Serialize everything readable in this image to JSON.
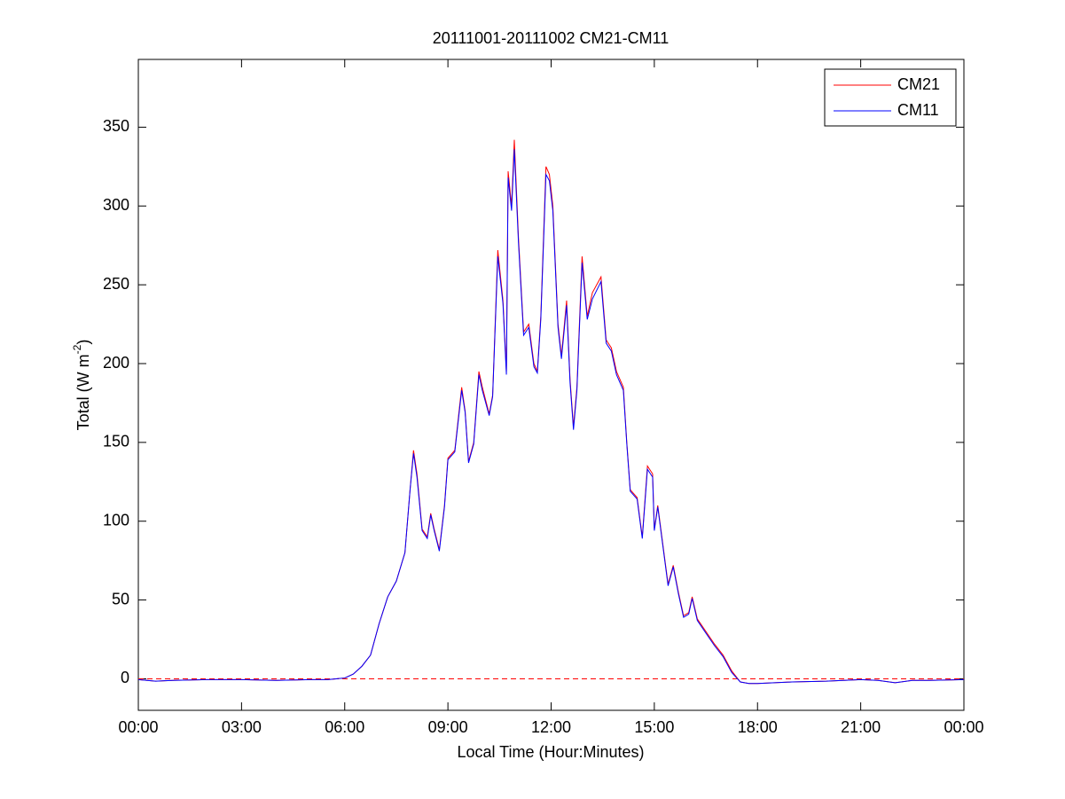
{
  "chart_data": {
    "type": "line",
    "title": "20111001-20111002 CM21-CM11",
    "xlabel": "Local Time (Hour:Minutes)",
    "ylabel": [
      "Total (W m",
      "-2",
      ")"
    ],
    "x": [
      0,
      0.5,
      1,
      2,
      3,
      4,
      5,
      5.5,
      5.75,
      6,
      6.25,
      6.5,
      6.75,
      7,
      7.25,
      7.5,
      7.75,
      7.9,
      8,
      8.1,
      8.25,
      8.4,
      8.5,
      8.6,
      8.75,
      8.9,
      9,
      9.2,
      9.4,
      9.5,
      9.6,
      9.75,
      9.9,
      10,
      10.2,
      10.3,
      10.45,
      10.6,
      10.7,
      10.75,
      10.85,
      10.93,
      11.05,
      11.2,
      11.35,
      11.5,
      11.6,
      11.7,
      11.85,
      11.95,
      12.05,
      12.2,
      12.3,
      12.45,
      12.55,
      12.65,
      12.75,
      12.9,
      13.05,
      13.2,
      13.45,
      13.6,
      13.75,
      13.9,
      14.1,
      14.2,
      14.3,
      14.5,
      14.65,
      14.8,
      14.95,
      15,
      15.1,
      15.25,
      15.4,
      15.55,
      15.7,
      15.85,
      16,
      16.1,
      16.25,
      16.5,
      16.75,
      17,
      17.25,
      17.5,
      17.75,
      18,
      19,
      20,
      21,
      21.5,
      22,
      22.5,
      23,
      24
    ],
    "series": [
      {
        "name": "CM21",
        "color": "#ff0000",
        "values": [
          -0.5,
          -1.5,
          -1,
          -0.5,
          -0.5,
          -1,
          -0.5,
          -0.5,
          0,
          0.5,
          3,
          8,
          15,
          35,
          52,
          62,
          80,
          120,
          145,
          130,
          95,
          90,
          105,
          95,
          82,
          110,
          140,
          145,
          185,
          170,
          138,
          150,
          195,
          185,
          168,
          180,
          272,
          240,
          195,
          322,
          300,
          342,
          280,
          220,
          225,
          200,
          195,
          230,
          325,
          320,
          300,
          225,
          205,
          240,
          190,
          160,
          185,
          268,
          230,
          245,
          255,
          215,
          210,
          195,
          185,
          150,
          120,
          115,
          90,
          135,
          130,
          95,
          110,
          85,
          60,
          72,
          55,
          40,
          42,
          52,
          38,
          30,
          22,
          15,
          5,
          -2,
          -3,
          -3,
          -2,
          -1.5,
          -0.5,
          -1,
          -2.5,
          -1,
          -1,
          -0.5
        ]
      },
      {
        "name": "CM11",
        "color": "#0000ff",
        "values": [
          -0.5,
          -1.5,
          -1,
          -0.5,
          -0.5,
          -1,
          -0.5,
          -0.5,
          0,
          0.5,
          3,
          8,
          15,
          35,
          52,
          62,
          80,
          120,
          143,
          128,
          94,
          89,
          104,
          94,
          81,
          109,
          139,
          144,
          183,
          169,
          137,
          149,
          193,
          183,
          167,
          179,
          268,
          238,
          193,
          318,
          297,
          336,
          277,
          218,
          223,
          198,
          194,
          228,
          320,
          316,
          297,
          223,
          203,
          237,
          188,
          158,
          183,
          264,
          228,
          241,
          252,
          213,
          208,
          193,
          183,
          149,
          119,
          114,
          89,
          133,
          128,
          94,
          109,
          84,
          59,
          71,
          54,
          39,
          41,
          51,
          37,
          29,
          21,
          14,
          4,
          -2,
          -3,
          -3,
          -2,
          -1.5,
          -0.5,
          -1,
          -2.5,
          -1,
          -1,
          -0.5
        ]
      }
    ],
    "hline": {
      "value": 0,
      "color": "#ff0000"
    },
    "xlim": [
      0,
      24
    ],
    "xticks": [
      {
        "value": 0,
        "label": "00:00"
      },
      {
        "value": 3,
        "label": "03:00"
      },
      {
        "value": 6,
        "label": "06:00"
      },
      {
        "value": 9,
        "label": "09:00"
      },
      {
        "value": 12,
        "label": "12:00"
      },
      {
        "value": 15,
        "label": "15:00"
      },
      {
        "value": 18,
        "label": "18:00"
      },
      {
        "value": 21,
        "label": "21:00"
      },
      {
        "value": 24,
        "label": "00:00"
      }
    ],
    "ylim": [
      -20,
      393
    ],
    "yticks": [
      0,
      50,
      100,
      150,
      200,
      250,
      300,
      350
    ],
    "legend": "upper right",
    "grid": false
  }
}
